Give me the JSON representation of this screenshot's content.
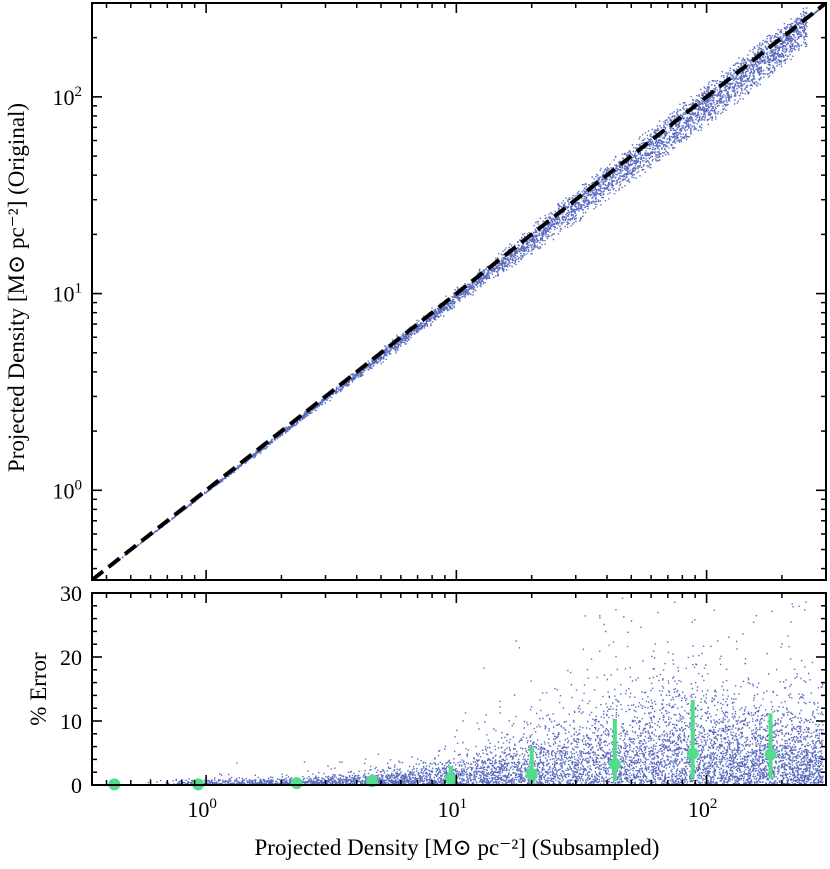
{
  "chart_data": [
    {
      "type": "scatter",
      "panel": "top",
      "xscale": "log",
      "yscale": "log",
      "xlim": [
        0.35,
        300
      ],
      "ylim": [
        0.35,
        300
      ],
      "ylabel": "Projected Density [M⊙ pc⁻²] (Original)",
      "ytick_labels": [
        {
          "value": 1,
          "base": "10",
          "exp": "0"
        },
        {
          "value": 10,
          "base": "10",
          "exp": "1"
        },
        {
          "value": 100,
          "base": "10",
          "exp": "2"
        }
      ],
      "reference_line": {
        "x": [
          0.35,
          300
        ],
        "y": [
          0.35,
          300
        ],
        "style": "dashed",
        "color": "#000000"
      },
      "point_color": "#5a6bbf",
      "scatter_envelope": {
        "x": [
          0.4,
          1,
          3,
          10,
          30,
          60,
          100,
          150,
          250
        ],
        "y_low": [
          0.4,
          0.98,
          2.85,
          9.0,
          24,
          46,
          75,
          110,
          190
        ],
        "y_high": [
          0.4,
          1.0,
          3.05,
          10.4,
          33,
          68,
          115,
          170,
          280
        ]
      },
      "grid": false
    },
    {
      "type": "scatter",
      "panel": "bottom",
      "xscale": "log",
      "xlim": [
        0.35,
        300
      ],
      "ylim": [
        0,
        30
      ],
      "xlabel": "Projected Density [M⊙ pc⁻²] (Subsampled)",
      "ylabel": "% Error",
      "xtick_labels": [
        {
          "value": 1,
          "base": "10",
          "exp": "0"
        },
        {
          "value": 10,
          "base": "10",
          "exp": "1"
        },
        {
          "value": 100,
          "base": "10",
          "exp": "2"
        }
      ],
      "yticks": [
        0,
        10,
        20,
        30
      ],
      "point_color": "#5a6bbf",
      "errorbar_color": "#52dc8c",
      "binned_median": {
        "x": [
          0.43,
          0.93,
          2.3,
          4.6,
          9.5,
          20,
          43,
          88,
          180
        ],
        "y": [
          0.1,
          0.1,
          0.3,
          0.6,
          1.0,
          1.7,
          3.2,
          4.9,
          4.8
        ],
        "y_low": [
          0.0,
          0.0,
          0.0,
          0.0,
          0.0,
          0.2,
          0.6,
          1.0,
          1.0
        ],
        "y_high": [
          0.5,
          0.5,
          0.8,
          1.6,
          3.0,
          6.0,
          10.3,
          13.3,
          11.2
        ]
      },
      "grid": false
    }
  ]
}
